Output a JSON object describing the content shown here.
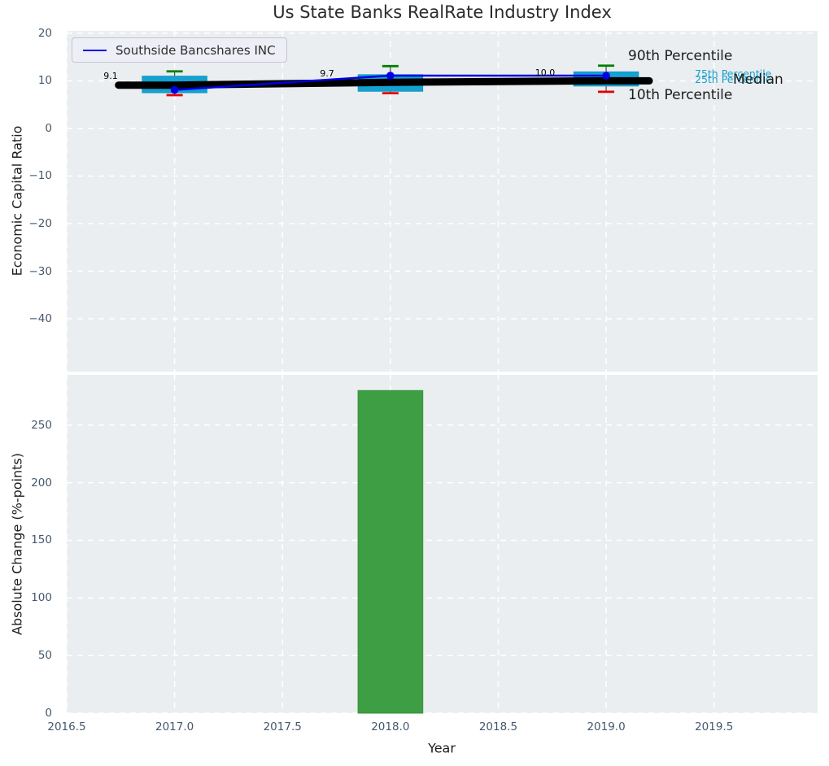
{
  "figure": {
    "title": "Us State Banks RealRate Industry Index"
  },
  "legend": {
    "label": "Southside Bancshares INC"
  },
  "annotations": {
    "p90": "90th Percentile",
    "p75": "75th Percentile",
    "p25": "25th Percentile",
    "median": "Median",
    "p10": "10th Percentile"
  },
  "colors": {
    "figure_bg": "#ffffff",
    "plot_bg": "#eaeef0",
    "grid": "#ffffff",
    "box_fill": "#14a2d2",
    "box_edge": "#0d8fbe",
    "whisker": "#555555",
    "cap_high": "#007f00",
    "cap_low": "#e00000",
    "median_line": "#000000",
    "company_line": "#0000e6",
    "bar_fill": "#3e9e43",
    "bar_edge": "#35913a",
    "tick_label": "#44586e",
    "cyan_text": "#189fca",
    "text_dark": "#1c1c1c"
  },
  "chart_data": [
    {
      "type": "box+line",
      "title": "Us State Banks RealRate Industry Index",
      "ylabel": "Economic Capital Ratio",
      "ylim": [
        -51.1,
        20.5
      ],
      "yticks": [
        20,
        10,
        0,
        -10,
        -20,
        -30,
        -40
      ],
      "ytick_labels": [
        "20",
        "10",
        "0",
        "−10",
        "−20",
        "−30",
        "−40"
      ],
      "xlim": [
        2016.5,
        2019.98
      ],
      "xticks": [
        2016.5,
        2017.0,
        2017.5,
        2018.0,
        2018.5,
        2019.0,
        2019.5
      ],
      "grid": "white dashed, on",
      "legend_position": "upper left",
      "series_name": "Southside Bancshares INC",
      "box_width_years": 0.3,
      "boxes": [
        {
          "year": 2017,
          "median": 9.1,
          "median_label": "9.1",
          "q1": 7.5,
          "q3": 11.0,
          "p10": 7.0,
          "p90": 12.0,
          "company": 8.1
        },
        {
          "year": 2018,
          "median": 9.7,
          "median_label": "9.7",
          "q1": 7.8,
          "q3": 11.3,
          "p10": 7.4,
          "p90": 13.1,
          "company": 11.1
        },
        {
          "year": 2019,
          "median": 10.0,
          "median_label": "10.0",
          "q1": 8.9,
          "q3": 11.9,
          "p10": 7.7,
          "p90": 13.2,
          "company": 11.1
        }
      ],
      "median_line_x": [
        2016.74,
        2017,
        2018,
        2019,
        2019.2
      ],
      "median_line_y": [
        9.1,
        9.1,
        9.7,
        10.0,
        10.0
      ],
      "company_line_x": [
        2017,
        2018,
        2019
      ],
      "company_line_y": [
        8.1,
        11.1,
        11.1
      ]
    },
    {
      "type": "bar",
      "ylabel": "Absolute Change (%-points)",
      "xlabel": "Year",
      "ylim": [
        0,
        293.6
      ],
      "yticks": [
        0,
        50,
        100,
        150,
        200,
        250
      ],
      "ytick_labels": [
        "0",
        "50",
        "100",
        "150",
        "200",
        "250"
      ],
      "xlim": [
        2016.5,
        2019.98
      ],
      "xticks": [
        2016.5,
        2017.0,
        2017.5,
        2018.0,
        2018.5,
        2019.0,
        2019.5
      ],
      "xtick_labels": [
        "2016.5",
        "2017.0",
        "2017.5",
        "2018.0",
        "2018.5",
        "2019.0",
        "2019.5"
      ],
      "grid": "white dashed, on",
      "bar_width_years": 0.3,
      "bars": [
        {
          "year": 2018,
          "value": 280
        }
      ]
    }
  ]
}
